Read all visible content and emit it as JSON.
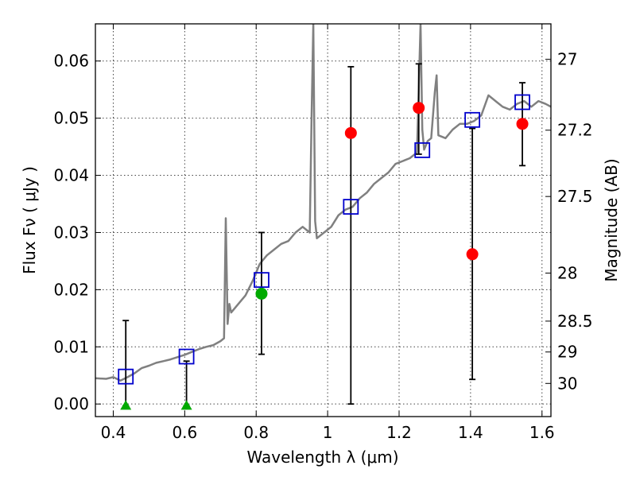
{
  "chart_data": {
    "type": "scatter",
    "xlabel": "Wavelength  λ (μm)",
    "ylabel": "Flux  Fν  ( μJy )",
    "y2label": "Magnitude (AB)",
    "xlim": [
      0.35,
      1.625
    ],
    "ylim": [
      -0.0022,
      0.0665
    ],
    "x_ticks": [
      0.4,
      0.6,
      0.8,
      1.0,
      1.2,
      1.4,
      1.6
    ],
    "x_tick_labels": [
      "0.4",
      "0.6",
      "0.8",
      "1",
      "1.2",
      "1.4",
      "1.6"
    ],
    "y_ticks": [
      0.0,
      0.01,
      0.02,
      0.03,
      0.04,
      0.05,
      0.06
    ],
    "y_tick_labels": [
      "0.00",
      "0.01",
      "0.02",
      "0.03",
      "0.04",
      "0.05",
      "0.06"
    ],
    "mag_ticks": [
      {
        "label": "27",
        "flux": 0.0603
      },
      {
        "label": "27.2",
        "flux": 0.0479
      },
      {
        "label": "27.5",
        "flux": 0.0363
      },
      {
        "label": "28",
        "flux": 0.0229
      },
      {
        "label": "28.5",
        "flux": 0.0145
      },
      {
        "label": "29",
        "flux": 0.0091
      },
      {
        "label": "30",
        "flux": 0.0036
      }
    ],
    "grid": true,
    "colors": {
      "spectrum": "#808080",
      "model": "#0000cc",
      "detection": "#ff0000",
      "green": "#00aa00",
      "errorbar": "#000000"
    },
    "series": [
      {
        "kind": "spectrum",
        "x": [
          0.35,
          0.38,
          0.4,
          0.42,
          0.44,
          0.46,
          0.48,
          0.5,
          0.52,
          0.54,
          0.56,
          0.58,
          0.6,
          0.62,
          0.64,
          0.66,
          0.68,
          0.7,
          0.71,
          0.715,
          0.72,
          0.725,
          0.73,
          0.75,
          0.77,
          0.79,
          0.81,
          0.83,
          0.85,
          0.87,
          0.89,
          0.91,
          0.93,
          0.95,
          0.955,
          0.96,
          0.965,
          0.97,
          0.99,
          1.01,
          1.03,
          1.05,
          1.07,
          1.09,
          1.11,
          1.13,
          1.15,
          1.17,
          1.19,
          1.21,
          1.23,
          1.25,
          1.255,
          1.26,
          1.265,
          1.27,
          1.28,
          1.29,
          1.3,
          1.305,
          1.31,
          1.33,
          1.35,
          1.37,
          1.39,
          1.41,
          1.43,
          1.45,
          1.47,
          1.49,
          1.51,
          1.53,
          1.55,
          1.57,
          1.59,
          1.61,
          1.625
        ],
        "y": [
          0.0045,
          0.0044,
          0.0047,
          0.0041,
          0.0047,
          0.0054,
          0.0063,
          0.0067,
          0.0072,
          0.0075,
          0.0078,
          0.0082,
          0.0086,
          0.0091,
          0.0096,
          0.01,
          0.0103,
          0.011,
          0.0115,
          0.0325,
          0.014,
          0.0175,
          0.016,
          0.0175,
          0.019,
          0.0215,
          0.0245,
          0.026,
          0.027,
          0.028,
          0.0285,
          0.03,
          0.031,
          0.03,
          0.05,
          0.0665,
          0.032,
          0.029,
          0.03,
          0.031,
          0.033,
          0.034,
          0.0345,
          0.036,
          0.037,
          0.0385,
          0.0395,
          0.0405,
          0.042,
          0.0425,
          0.043,
          0.044,
          0.055,
          0.0665,
          0.048,
          0.0445,
          0.046,
          0.0465,
          0.0545,
          0.0575,
          0.047,
          0.0465,
          0.048,
          0.049,
          0.049,
          0.0495,
          0.0505,
          0.054,
          0.053,
          0.052,
          0.0515,
          0.0525,
          0.053,
          0.052,
          0.053,
          0.0525,
          0.052
        ]
      },
      {
        "kind": "model",
        "x": [
          0.435,
          0.605,
          0.815,
          1.065,
          1.265,
          1.405,
          1.545
        ],
        "y": [
          0.0048,
          0.0083,
          0.0217,
          0.0345,
          0.0444,
          0.0497,
          0.0528
        ]
      },
      {
        "kind": "detection",
        "x": [
          1.065,
          1.255,
          1.405,
          1.545
        ],
        "y": [
          0.0474,
          0.0518,
          0.0262,
          0.049
        ],
        "err_low": [
          0.0,
          0.0437,
          0.0043,
          0.0417
        ],
        "err_high": [
          0.059,
          0.0595,
          0.0482,
          0.0562
        ]
      },
      {
        "kind": "green",
        "x": [
          0.815
        ],
        "y": [
          0.0193
        ],
        "err_low": [
          0.0087
        ],
        "err_high": [
          0.03
        ]
      },
      {
        "kind": "upper_limit",
        "x": [
          0.435,
          0.605
        ],
        "y": [
          -0.0003,
          -0.0003
        ],
        "err_low": [
          -0.0003,
          -0.0003
        ],
        "err_high": [
          0.0146,
          0.0075
        ]
      }
    ]
  }
}
